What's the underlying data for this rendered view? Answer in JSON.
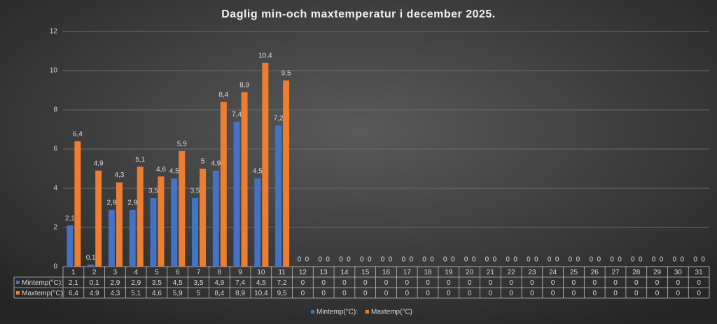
{
  "chart_data": {
    "type": "bar",
    "title": "Daglig min-och maxtemperatur i december 2025.",
    "categories": [
      "1",
      "2",
      "3",
      "4",
      "5",
      "6",
      "7",
      "8",
      "9",
      "10",
      "11",
      "12",
      "13",
      "14",
      "15",
      "16",
      "17",
      "18",
      "19",
      "20",
      "21",
      "22",
      "23",
      "24",
      "25",
      "26",
      "27",
      "28",
      "29",
      "30",
      "31"
    ],
    "series": [
      {
        "name": "Mintemp(°C):",
        "color": "#4472c4",
        "values": [
          2.1,
          0.1,
          2.9,
          2.9,
          3.5,
          4.5,
          3.5,
          4.9,
          7.4,
          4.5,
          7.2,
          0,
          0,
          0,
          0,
          0,
          0,
          0,
          0,
          0,
          0,
          0,
          0,
          0,
          0,
          0,
          0,
          0,
          0,
          0,
          0
        ],
        "value_labels": [
          "2,1",
          "0,1",
          "2,9",
          "2,9",
          "3,5",
          "4,5",
          "3,5",
          "4,9",
          "7,4",
          "4,5",
          "7,2",
          "0",
          "0",
          "0",
          "0",
          "0",
          "0",
          "0",
          "0",
          "0",
          "0",
          "0",
          "0",
          "0",
          "0",
          "0",
          "0",
          "0",
          "0",
          "0",
          "0"
        ]
      },
      {
        "name": "Maxtemp(°C)",
        "color": "#ed7d31",
        "values": [
          6.4,
          4.9,
          4.3,
          5.1,
          4.6,
          5.9,
          5,
          8.4,
          8.9,
          10.4,
          9.5,
          0,
          0,
          0,
          0,
          0,
          0,
          0,
          0,
          0,
          0,
          0,
          0,
          0,
          0,
          0,
          0,
          0,
          0,
          0,
          0
        ],
        "value_labels": [
          "6,4",
          "4,9",
          "4,3",
          "5,1",
          "4,6",
          "5,9",
          "5",
          "8,4",
          "8,9",
          "10,4",
          "9,5",
          "0",
          "0",
          "0",
          "0",
          "0",
          "0",
          "0",
          "0",
          "0",
          "0",
          "0",
          "0",
          "0",
          "0",
          "0",
          "0",
          "0",
          "0",
          "0",
          "0"
        ]
      }
    ],
    "table_row_labels": [
      "Mintemp(°C):",
      "Maxtemp(°C):"
    ],
    "ylim": [
      0,
      12
    ],
    "yticks": [
      0,
      2,
      4,
      6,
      8,
      10,
      12
    ],
    "grid": true,
    "legend": "bottom"
  }
}
